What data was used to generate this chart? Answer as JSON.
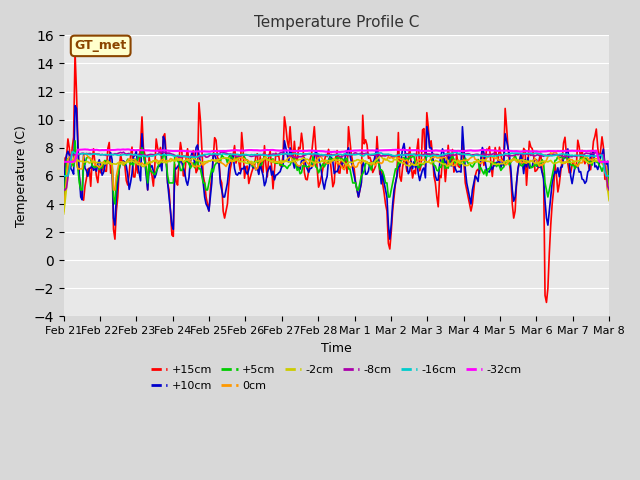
{
  "title": "Temperature Profile C",
  "xlabel": "Time",
  "ylabel": "Temperature (C)",
  "ylim": [
    -4,
    16
  ],
  "yticks": [
    -4,
    -2,
    0,
    2,
    4,
    6,
    8,
    10,
    12,
    14,
    16
  ],
  "n_days": 15,
  "series": {
    "+15cm": {
      "color": "#ff0000",
      "lw": 1.2
    },
    "+10cm": {
      "color": "#0000cc",
      "lw": 1.2
    },
    "+5cm": {
      "color": "#00cc00",
      "lw": 1.2
    },
    "0cm": {
      "color": "#ff9900",
      "lw": 1.2
    },
    "-2cm": {
      "color": "#cccc00",
      "lw": 1.2
    },
    "-8cm": {
      "color": "#aa00aa",
      "lw": 1.2
    },
    "-16cm": {
      "color": "#00cccc",
      "lw": 1.2
    },
    "-32cm": {
      "color": "#ff00ff",
      "lw": 1.5
    }
  },
  "xtick_labels": [
    "Feb 21",
    "Feb 22",
    "Feb 23",
    "Feb 24",
    "Feb 25",
    "Feb 26",
    "Feb 27",
    "Feb 28",
    "Mar 1",
    "Mar 2",
    "Mar 3",
    "Mar 4",
    "Mar 5",
    "Mar 6",
    "Mar 7",
    "Mar 8"
  ],
  "annotation": "GT_met",
  "background_color": "#d8d8d8",
  "plot_bg": "#e8e8e8"
}
